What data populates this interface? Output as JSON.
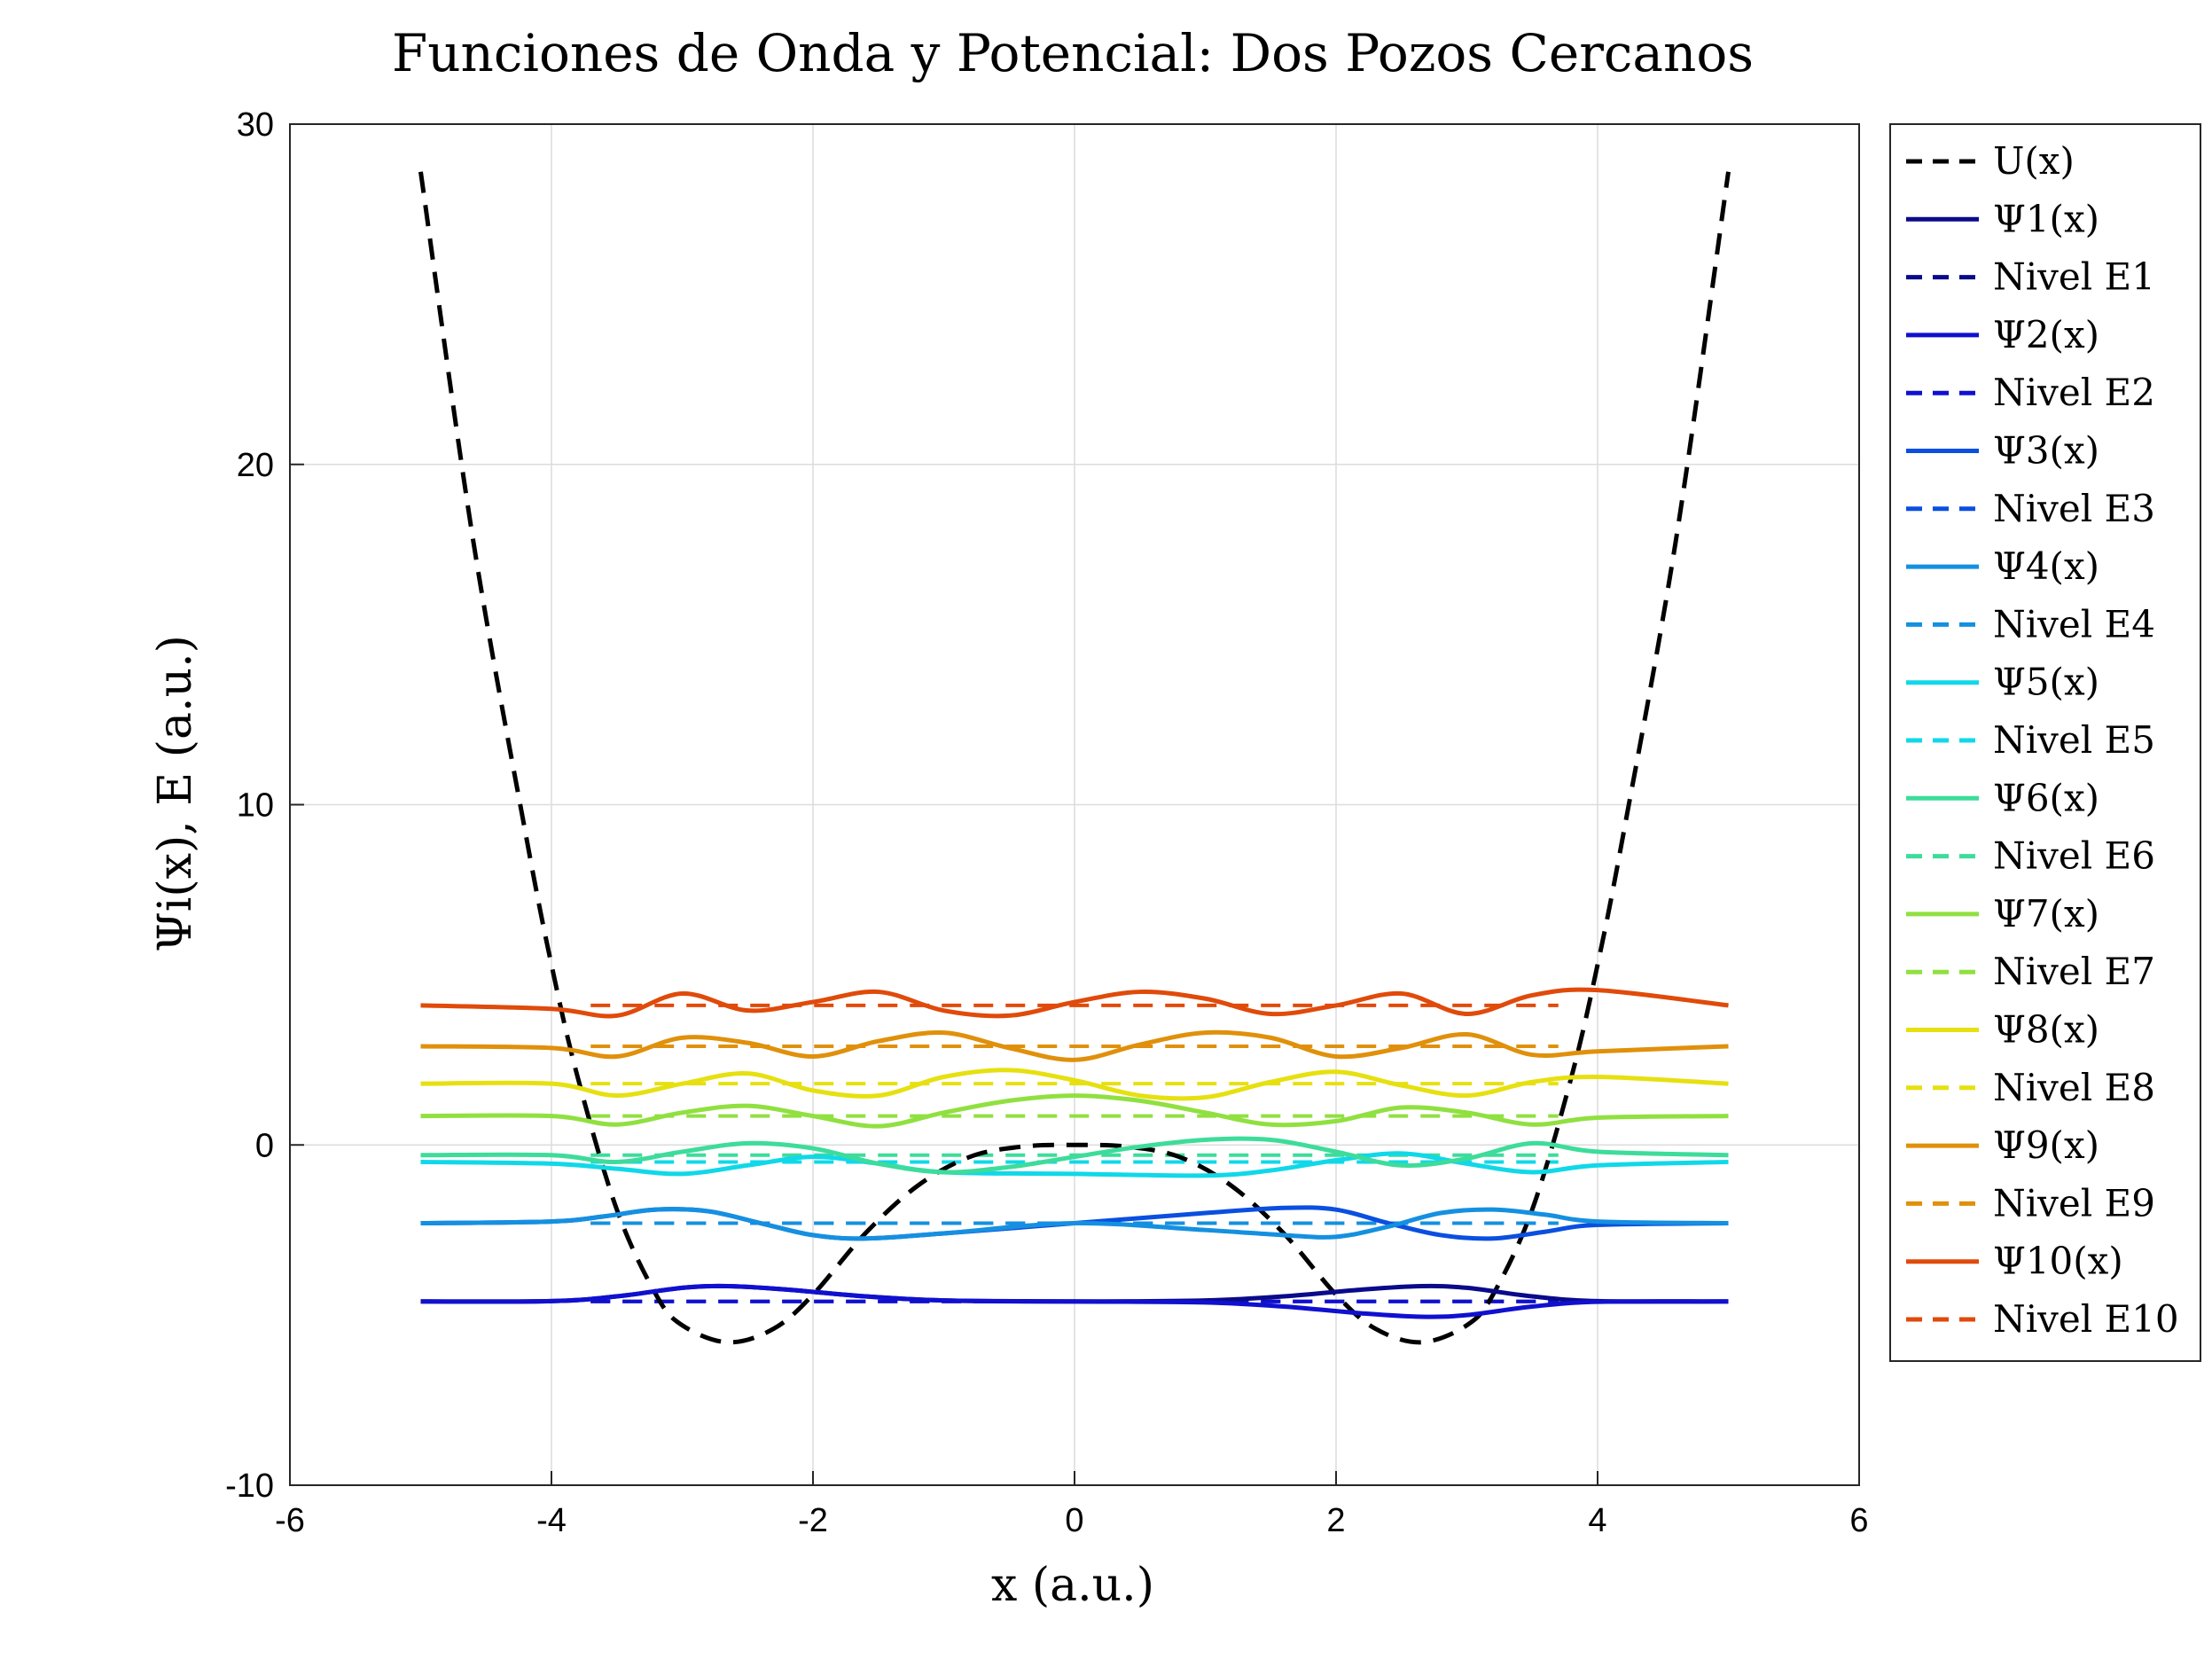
{
  "chart_data": {
    "type": "line",
    "title": "Funciones de Onda y Potencial: Dos Pozos Cercanos",
    "xlabel": "x (a.u.)",
    "ylabel": "Ψi(x), E (a.u.)",
    "xlim": [
      -6,
      6
    ],
    "ylim": [
      -10,
      30
    ],
    "x_ticks": [
      -6,
      -4,
      -2,
      0,
      2,
      4,
      6
    ],
    "y_ticks": [
      -10,
      0,
      10,
      20,
      30
    ],
    "grid": true,
    "legend_position": "outside right",
    "potential": {
      "name": "U(x)",
      "color": "#000000",
      "formula": "0.5*((x^2 - 7)^2/4 - 11.5) approx, double well with minima ≈ -5.8 at x ≈ ±2.65, barrier 0 at x = 0, ≈ 28.5 at x = ±5",
      "x": [
        -5.0,
        -4.6,
        -4.2,
        -4.0,
        -3.8,
        -3.5,
        -3.2,
        -3.0,
        -2.65,
        -2.3,
        -2.0,
        -1.6,
        -1.2,
        -0.8,
        -0.4,
        0.0,
        0.4,
        0.8,
        1.2,
        1.6,
        2.0,
        2.3,
        2.65,
        3.0,
        3.2,
        3.5,
        3.8,
        4.0,
        4.2,
        4.6,
        5.0
      ],
      "y": [
        28.6,
        17.8,
        9.2,
        5.3,
        2.0,
        -1.9,
        -4.4,
        -5.3,
        -5.8,
        -5.4,
        -4.4,
        -2.6,
        -1.2,
        -0.35,
        -0.05,
        0.0,
        -0.05,
        -0.35,
        -1.2,
        -2.6,
        -4.4,
        -5.4,
        -5.8,
        -5.3,
        -4.4,
        -1.9,
        2.0,
        5.3,
        9.2,
        17.8,
        28.6
      ]
    },
    "levels": [
      {
        "index": 1,
        "psi_label": "Ψ1(x)",
        "level_label": "Nivel E1",
        "energy": -4.6,
        "color": "#0a0a8a"
      },
      {
        "index": 2,
        "psi_label": "Ψ2(x)",
        "level_label": "Nivel E2",
        "energy": -4.6,
        "color": "#1010d0"
      },
      {
        "index": 3,
        "psi_label": "Ψ3(x)",
        "level_label": "Nivel E3",
        "energy": -2.3,
        "color": "#0a4fe0"
      },
      {
        "index": 4,
        "psi_label": "Ψ4(x)",
        "level_label": "Nivel E4",
        "energy": -2.3,
        "color": "#1590e0"
      },
      {
        "index": 5,
        "psi_label": "Ψ5(x)",
        "level_label": "Nivel E5",
        "energy": -0.5,
        "color": "#10d8e8"
      },
      {
        "index": 6,
        "psi_label": "Ψ6(x)",
        "level_label": "Nivel E6",
        "energy": -0.3,
        "color": "#3ddc9a"
      },
      {
        "index": 7,
        "psi_label": "Ψ7(x)",
        "level_label": "Nivel E7",
        "energy": 0.85,
        "color": "#90e040"
      },
      {
        "index": 8,
        "psi_label": "Ψ8(x)",
        "level_label": "Nivel E8",
        "energy": 1.8,
        "color": "#e6e010"
      },
      {
        "index": 9,
        "psi_label": "Ψ9(x)",
        "level_label": "Nivel E9",
        "energy": 2.9,
        "color": "#e0900a"
      },
      {
        "index": 10,
        "psi_label": "Ψ10(x)",
        "level_label": "Nivel E10",
        "energy": 4.1,
        "color": "#e04a0a"
      }
    ],
    "wavefunction_x_range": [
      -5,
      5
    ],
    "level_line_x_range": [
      -3.7,
      3.7
    ],
    "wavefunctions": [
      {
        "index": 1,
        "x": [
          -5.0,
          -4.0,
          -3.5,
          -3.0,
          -2.65,
          -2.2,
          -1.6,
          -1.0,
          0.0,
          1.0,
          1.6,
          2.2,
          2.65,
          3.0,
          3.5,
          4.0,
          5.0
        ],
        "y": [
          -4.6,
          -4.59,
          -4.45,
          -4.2,
          -4.15,
          -4.25,
          -4.45,
          -4.57,
          -4.6,
          -4.57,
          -4.45,
          -4.25,
          -4.15,
          -4.2,
          -4.45,
          -4.59,
          -4.6
        ]
      },
      {
        "index": 2,
        "x": [
          -5.0,
          -4.0,
          -3.5,
          -3.0,
          -2.65,
          -2.2,
          -1.6,
          -1.0,
          0.0,
          1.0,
          1.6,
          2.2,
          2.65,
          3.0,
          3.5,
          4.0,
          5.0
        ],
        "y": [
          -4.6,
          -4.59,
          -4.45,
          -4.2,
          -4.15,
          -4.25,
          -4.45,
          -4.57,
          -4.6,
          -4.63,
          -4.75,
          -4.95,
          -5.05,
          -5.0,
          -4.75,
          -4.61,
          -4.6
        ]
      },
      {
        "index": 3,
        "x": [
          -5.0,
          -4.0,
          -3.6,
          -3.2,
          -2.8,
          -2.4,
          -2.0,
          -1.6,
          -1.0,
          0.0,
          1.0,
          1.6,
          2.0,
          2.4,
          2.8,
          3.2,
          3.6,
          4.0,
          5.0
        ],
        "y": [
          -2.3,
          -2.25,
          -2.1,
          -1.9,
          -1.95,
          -2.3,
          -2.65,
          -2.75,
          -2.6,
          -2.3,
          -2.0,
          -1.85,
          -1.9,
          -2.3,
          -2.65,
          -2.75,
          -2.55,
          -2.35,
          -2.3
        ]
      },
      {
        "index": 4,
        "x": [
          -5.0,
          -4.0,
          -3.6,
          -3.2,
          -2.8,
          -2.4,
          -2.0,
          -1.6,
          -1.0,
          0.0,
          1.0,
          1.6,
          2.0,
          2.4,
          2.8,
          3.2,
          3.6,
          4.0,
          5.0
        ],
        "y": [
          -2.3,
          -2.25,
          -2.1,
          -1.9,
          -1.95,
          -2.3,
          -2.65,
          -2.75,
          -2.6,
          -2.3,
          -2.5,
          -2.65,
          -2.7,
          -2.4,
          -2.0,
          -1.9,
          -2.05,
          -2.25,
          -2.3
        ]
      },
      {
        "index": 5,
        "x": [
          -5.0,
          -4.0,
          -3.5,
          -3.0,
          -2.5,
          -2.0,
          -1.5,
          -1.0,
          0.0,
          1.0,
          1.5,
          2.0,
          2.5,
          3.0,
          3.5,
          4.0,
          5.0
        ],
        "y": [
          -0.5,
          -0.55,
          -0.7,
          -0.85,
          -0.6,
          -0.35,
          -0.55,
          -0.8,
          -0.85,
          -0.9,
          -0.75,
          -0.45,
          -0.25,
          -0.55,
          -0.8,
          -0.6,
          -0.5
        ]
      },
      {
        "index": 6,
        "x": [
          -5.0,
          -4.0,
          -3.5,
          -3.0,
          -2.5,
          -2.0,
          -1.5,
          -1.0,
          -0.5,
          0.0,
          0.5,
          1.0,
          1.5,
          2.0,
          2.5,
          3.0,
          3.5,
          4.0,
          5.0
        ],
        "y": [
          -0.3,
          -0.3,
          -0.5,
          -0.2,
          0.05,
          -0.1,
          -0.55,
          -0.8,
          -0.65,
          -0.35,
          -0.05,
          0.15,
          0.15,
          -0.2,
          -0.6,
          -0.4,
          0.05,
          -0.2,
          -0.3
        ]
      },
      {
        "index": 7,
        "x": [
          -5.0,
          -4.0,
          -3.5,
          -3.0,
          -2.5,
          -2.0,
          -1.5,
          -1.0,
          -0.5,
          0.0,
          0.5,
          1.0,
          1.5,
          2.0,
          2.5,
          3.0,
          3.5,
          4.0,
          5.0
        ],
        "y": [
          0.85,
          0.85,
          0.6,
          0.95,
          1.15,
          0.85,
          0.55,
          0.95,
          1.3,
          1.45,
          1.3,
          0.95,
          0.6,
          0.7,
          1.1,
          0.95,
          0.6,
          0.8,
          0.85
        ]
      },
      {
        "index": 8,
        "x": [
          -5.0,
          -4.0,
          -3.5,
          -3.0,
          -2.5,
          -2.0,
          -1.5,
          -1.0,
          -0.5,
          0.0,
          0.5,
          1.0,
          1.5,
          2.0,
          2.5,
          3.0,
          3.5,
          4.0,
          5.0
        ],
        "y": [
          1.8,
          1.8,
          1.45,
          1.8,
          2.1,
          1.6,
          1.45,
          2.0,
          2.2,
          1.9,
          1.45,
          1.4,
          1.85,
          2.15,
          1.75,
          1.45,
          1.85,
          2.0,
          1.8
        ]
      },
      {
        "index": 9,
        "x": [
          -5.0,
          -4.0,
          -3.5,
          -3.0,
          -2.5,
          -2.0,
          -1.5,
          -1.0,
          -0.5,
          0.0,
          0.5,
          1.0,
          1.5,
          2.0,
          2.5,
          3.0,
          3.5,
          4.0,
          5.0
        ],
        "y": [
          2.9,
          2.85,
          2.6,
          3.15,
          3.0,
          2.6,
          3.05,
          3.3,
          2.85,
          2.5,
          2.95,
          3.3,
          3.15,
          2.6,
          2.85,
          3.25,
          2.65,
          2.75,
          2.9
        ]
      },
      {
        "index": 10,
        "x": [
          -5.0,
          -4.0,
          -3.5,
          -3.0,
          -2.5,
          -2.0,
          -1.5,
          -1.0,
          -0.5,
          0.0,
          0.5,
          1.0,
          1.5,
          2.0,
          2.5,
          3.0,
          3.5,
          4.0,
          5.0
        ],
        "y": [
          4.1,
          4.0,
          3.8,
          4.45,
          3.95,
          4.2,
          4.5,
          3.95,
          3.8,
          4.2,
          4.5,
          4.3,
          3.85,
          4.1,
          4.45,
          3.85,
          4.4,
          4.55,
          4.1
        ]
      }
    ]
  }
}
